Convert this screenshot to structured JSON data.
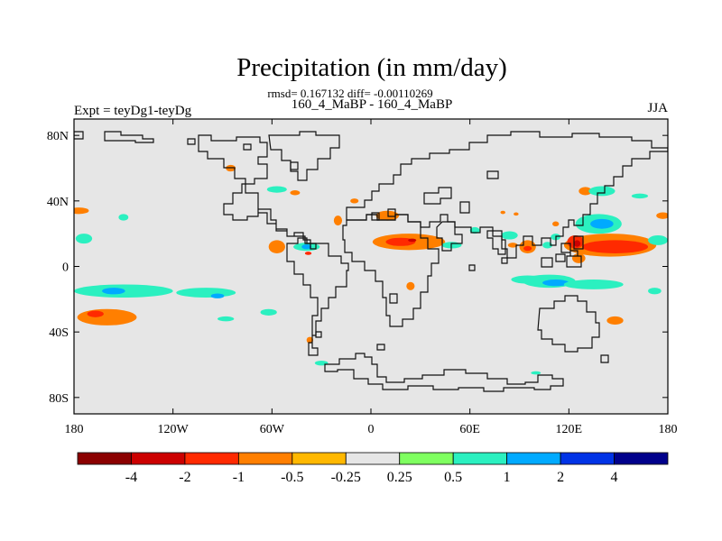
{
  "chart_data": {
    "type": "heatmap",
    "title": "Precipitation (in mm/day)",
    "subtitle_stats": "rmsd= 0.167132 diff= -0.00110269",
    "subtitle_case": "160_4_MaBP - 160_4_MaBP",
    "left_label": "Expt = teyDg1-teyDg",
    "right_label": "JJA",
    "xlim": [
      -180,
      180
    ],
    "ylim": [
      -90,
      90
    ],
    "x_ticks": [
      {
        "value": -180,
        "label": "180"
      },
      {
        "value": -120,
        "label": "120W"
      },
      {
        "value": -60,
        "label": "60W"
      },
      {
        "value": 0,
        "label": "0"
      },
      {
        "value": 60,
        "label": "60E"
      },
      {
        "value": 120,
        "label": "120E"
      },
      {
        "value": 180,
        "label": "180"
      }
    ],
    "y_ticks": [
      {
        "value": 80,
        "label": "80N"
      },
      {
        "value": 40,
        "label": "40N"
      },
      {
        "value": 0,
        "label": "0"
      },
      {
        "value": -40,
        "label": "40S"
      },
      {
        "value": -80,
        "label": "80S"
      }
    ],
    "colorbar": {
      "levels": [
        "-4",
        "-2",
        "-1",
        "-0.5",
        "-0.25",
        "0.25",
        "0.5",
        "1",
        "2",
        "4"
      ],
      "colors": [
        "#8b0000",
        "#cc0000",
        "#ff2a00",
        "#ff7f00",
        "#ffb800",
        "#e6e6e6",
        "#7fff60",
        "#2bf0c0",
        "#00aaff",
        "#0033e6",
        "#00008b"
      ]
    },
    "background_color": "#e6e6e6",
    "anomaly_regions": [
      {
        "lon": -177,
        "lat": 34,
        "rx": 6,
        "ry": 2,
        "level": "-0.5"
      },
      {
        "lon": -150,
        "lat": 30,
        "rx": 3,
        "ry": 2,
        "level": "0.5"
      },
      {
        "lon": -174,
        "lat": 17,
        "rx": 5,
        "ry": 3,
        "level": "0.5"
      },
      {
        "lon": -150,
        "lat": -15,
        "rx": 30,
        "ry": 4,
        "level": "0.5"
      },
      {
        "lon": -156,
        "lat": -15,
        "rx": 7,
        "ry": 2,
        "level": "1"
      },
      {
        "lon": -100,
        "lat": -16,
        "rx": 18,
        "ry": 3,
        "level": "0.5"
      },
      {
        "lon": -93,
        "lat": -18,
        "rx": 4,
        "ry": 1.5,
        "level": "1"
      },
      {
        "lon": -160,
        "lat": -31,
        "rx": 18,
        "ry": 5,
        "level": "-0.5"
      },
      {
        "lon": -167,
        "lat": -29,
        "rx": 5,
        "ry": 2,
        "level": "-1"
      },
      {
        "lon": -88,
        "lat": -32,
        "rx": 5,
        "ry": 1.5,
        "level": "0.5"
      },
      {
        "lon": -62,
        "lat": -28,
        "rx": 5,
        "ry": 2,
        "level": "0.5"
      },
      {
        "lon": -85,
        "lat": 60,
        "rx": 3,
        "ry": 2,
        "level": "-0.5"
      },
      {
        "lon": -57,
        "lat": 47,
        "rx": 6,
        "ry": 2,
        "level": "0.5"
      },
      {
        "lon": -46,
        "lat": 45,
        "rx": 3,
        "ry": 1.5,
        "level": "-0.5"
      },
      {
        "lon": -57,
        "lat": 12,
        "rx": 5,
        "ry": 4,
        "level": "-0.5"
      },
      {
        "lon": -39,
        "lat": 12,
        "rx": 8,
        "ry": 2.5,
        "level": "0.5"
      },
      {
        "lon": -39,
        "lat": 12,
        "rx": 3,
        "ry": 1.5,
        "level": "1"
      },
      {
        "lon": -38,
        "lat": 8,
        "rx": 2,
        "ry": 1,
        "level": "-1"
      },
      {
        "lon": -20,
        "lat": 28,
        "rx": 2.5,
        "ry": 3,
        "level": "-0.5"
      },
      {
        "lon": -10,
        "lat": 40,
        "rx": 2.5,
        "ry": 1.5,
        "level": "-0.5"
      },
      {
        "lon": 10,
        "lat": 31,
        "rx": 7,
        "ry": 3,
        "level": "-0.5"
      },
      {
        "lon": 23,
        "lat": 15,
        "rx": 22,
        "ry": 5,
        "level": "-0.5"
      },
      {
        "lon": 18,
        "lat": 15,
        "rx": 9,
        "ry": 2.5,
        "level": "-1"
      },
      {
        "lon": 25,
        "lat": 16,
        "rx": 2.5,
        "ry": 1,
        "level": "-2"
      },
      {
        "lon": 49,
        "lat": 13,
        "rx": 6,
        "ry": 2,
        "level": "0.5"
      },
      {
        "lon": 63,
        "lat": 22,
        "rx": 3,
        "ry": 2,
        "level": "0.5"
      },
      {
        "lon": 84,
        "lat": 19,
        "rx": 5,
        "ry": 2.5,
        "level": "0.5"
      },
      {
        "lon": 86,
        "lat": 13,
        "rx": 3,
        "ry": 1.5,
        "level": "-0.5"
      },
      {
        "lon": 95,
        "lat": 12,
        "rx": 5,
        "ry": 4,
        "level": "-0.5"
      },
      {
        "lon": 95,
        "lat": 11,
        "rx": 2.5,
        "ry": 1.5,
        "level": "-1"
      },
      {
        "lon": 107,
        "lat": 13,
        "rx": 3,
        "ry": 2,
        "level": "0.5"
      },
      {
        "lon": 112,
        "lat": 18,
        "rx": 3,
        "ry": 2,
        "level": "0.5"
      },
      {
        "lon": 112,
        "lat": 26,
        "rx": 2,
        "ry": 1.5,
        "level": "-0.5"
      },
      {
        "lon": 145,
        "lat": 13,
        "rx": 28,
        "ry": 7,
        "level": "-0.5"
      },
      {
        "lon": 148,
        "lat": 12,
        "rx": 20,
        "ry": 4,
        "level": "-1"
      },
      {
        "lon": 124,
        "lat": 15,
        "rx": 5,
        "ry": 4,
        "level": "-1"
      },
      {
        "lon": 125,
        "lat": 14,
        "rx": 2,
        "ry": 2,
        "level": "-2"
      },
      {
        "lon": 126,
        "lat": 5,
        "rx": 4,
        "ry": 3,
        "level": "-0.5"
      },
      {
        "lon": 138,
        "lat": 26,
        "rx": 14,
        "ry": 6,
        "level": "0.5"
      },
      {
        "lon": 140,
        "lat": 26,
        "rx": 7,
        "ry": 3,
        "level": "1"
      },
      {
        "lon": 130,
        "lat": 46,
        "rx": 4,
        "ry": 2.5,
        "level": "-0.5"
      },
      {
        "lon": 140,
        "lat": 46,
        "rx": 8,
        "ry": 3,
        "level": "0.5"
      },
      {
        "lon": 163,
        "lat": 43,
        "rx": 5,
        "ry": 1.5,
        "level": "0.5"
      },
      {
        "lon": 177,
        "lat": 31,
        "rx": 4,
        "ry": 2,
        "level": "-0.5"
      },
      {
        "lon": 174,
        "lat": 16,
        "rx": 6,
        "ry": 3,
        "level": "0.5"
      },
      {
        "lon": 95,
        "lat": -8,
        "rx": 10,
        "ry": 2.5,
        "level": "0.5"
      },
      {
        "lon": 108,
        "lat": -9,
        "rx": 16,
        "ry": 4,
        "level": "0.5"
      },
      {
        "lon": 112,
        "lat": -10,
        "rx": 8,
        "ry": 2,
        "level": "1"
      },
      {
        "lon": 135,
        "lat": -11,
        "rx": 18,
        "ry": 3,
        "level": "0.5"
      },
      {
        "lon": 172,
        "lat": -15,
        "rx": 4,
        "ry": 2,
        "level": "0.5"
      },
      {
        "lon": 148,
        "lat": -33,
        "rx": 5,
        "ry": 2.5,
        "level": "-0.5"
      },
      {
        "lon": 24,
        "lat": -12,
        "rx": 2.5,
        "ry": 2.5,
        "level": "-0.5"
      },
      {
        "lon": 80,
        "lat": 33,
        "rx": 1.5,
        "ry": 1,
        "level": "-0.5"
      },
      {
        "lon": 88,
        "lat": 32,
        "rx": 1.5,
        "ry": 1,
        "level": "-0.5"
      },
      {
        "lon": -37,
        "lat": -45,
        "rx": 2,
        "ry": 2,
        "level": "-0.5"
      },
      {
        "lon": -30,
        "lat": -59,
        "rx": 4,
        "ry": 1.5,
        "level": "0.5"
      },
      {
        "lon": 100,
        "lat": -65,
        "rx": 3,
        "ry": 1,
        "level": "0.5"
      }
    ]
  }
}
